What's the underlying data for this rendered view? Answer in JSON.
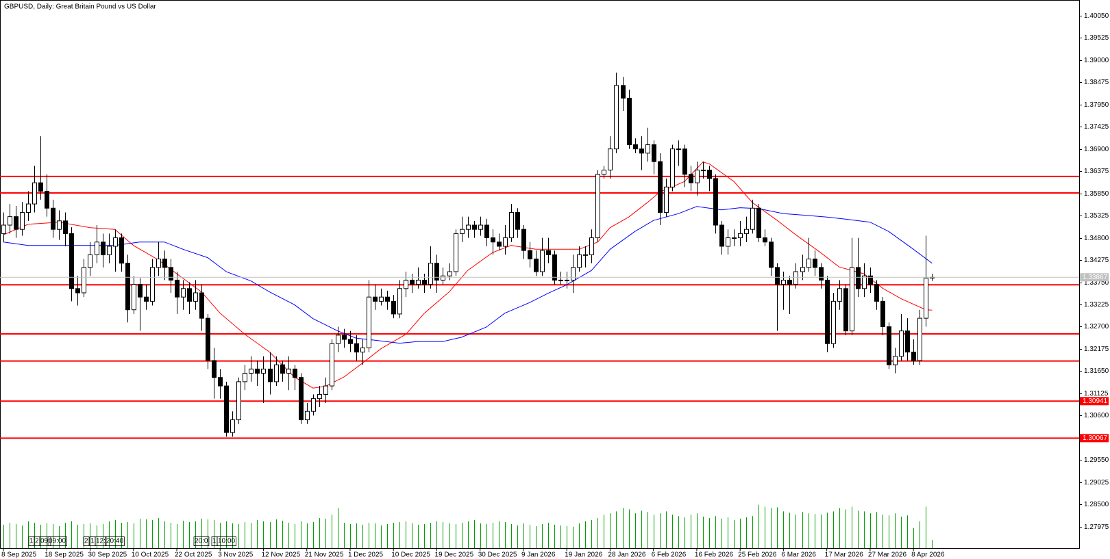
{
  "chart_data": {
    "type": "candlestick",
    "title": "GBPUSD, Daily:  Great Britain Pound vs US Dollar",
    "ylim": [
      1.2747,
      1.4037
    ],
    "yticks": [
      {
        "value": 1.4005,
        "label": "1.40050"
      },
      {
        "value": 1.39525,
        "label": "1.39525"
      },
      {
        "value": 1.39,
        "label": "1.39000"
      },
      {
        "value": 1.38475,
        "label": "1.38475"
      },
      {
        "value": 1.3795,
        "label": "1.37950"
      },
      {
        "value": 1.37425,
        "label": "1.37425"
      },
      {
        "value": 1.369,
        "label": "1.36900"
      },
      {
        "value": 1.36375,
        "label": "1.36375"
      },
      {
        "value": 1.3585,
        "label": "1.35850"
      },
      {
        "value": 1.35325,
        "label": "1.35325"
      },
      {
        "value": 1.348,
        "label": "1.34800"
      },
      {
        "value": 1.34275,
        "label": "1.34275"
      },
      {
        "value": 1.3375,
        "label": "1.33750"
      },
      {
        "value": 1.33225,
        "label": "1.33225"
      },
      {
        "value": 1.327,
        "label": "1.32700"
      },
      {
        "value": 1.32175,
        "label": "1.32175"
      },
      {
        "value": 1.3165,
        "label": "1.31650"
      },
      {
        "value": 1.31125,
        "label": "1.31125"
      },
      {
        "value": 1.306,
        "label": "1.30600"
      },
      {
        "value": 1.30075,
        "label": "1.30075"
      },
      {
        "value": 1.2955,
        "label": "1.29550"
      },
      {
        "value": 1.29025,
        "label": "1.29025"
      },
      {
        "value": 1.285,
        "label": "1.28500"
      },
      {
        "value": 1.27975,
        "label": "1.27975"
      }
    ],
    "categories": [
      "8 Sep 2025",
      "18 Sep 2025",
      "30 Sep 2025",
      "10 Oct 2025",
      "22 Oct 2025",
      "3 Nov 2025",
      "12 Nov 2025",
      "21 Nov 2025",
      "1 Dec 2025",
      "10 Dec 2025",
      "19 Dec 2025",
      "30 Dec 2025",
      "9 Jan 2026",
      "19 Jan 2026",
      "28 Jan 2026",
      "6 Feb 2026",
      "16 Feb 2026",
      "25 Feb 2026",
      "6 Mar 2026",
      "17 Mar 2026",
      "27 Mar 2026",
      "8 Apr 2026"
    ],
    "candles": [
      [
        1.349,
        1.354,
        1.347,
        1.351
      ],
      [
        1.351,
        1.356,
        1.349,
        1.353
      ],
      [
        1.353,
        1.3555,
        1.348,
        1.35
      ],
      [
        1.35,
        1.3565,
        1.3485,
        1.354
      ],
      [
        1.354,
        1.359,
        1.352,
        1.356
      ],
      [
        1.356,
        1.365,
        1.354,
        1.361
      ],
      [
        1.361,
        1.372,
        1.357,
        1.359
      ],
      [
        1.359,
        1.363,
        1.353,
        1.355
      ],
      [
        1.355,
        1.357,
        1.348,
        1.35
      ],
      [
        1.35,
        1.3545,
        1.3475,
        1.352
      ],
      [
        1.352,
        1.354,
        1.346,
        1.349
      ],
      [
        1.349,
        1.3505,
        1.333,
        1.336
      ],
      [
        1.336,
        1.339,
        1.332,
        1.335
      ],
      [
        1.335,
        1.343,
        1.334,
        1.341
      ],
      [
        1.341,
        1.347,
        1.339,
        1.344
      ],
      [
        1.344,
        1.351,
        1.342,
        1.347
      ],
      [
        1.347,
        1.349,
        1.341,
        1.344
      ],
      [
        1.344,
        1.349,
        1.342,
        1.346
      ],
      [
        1.346,
        1.35,
        1.34,
        1.348
      ],
      [
        1.348,
        1.349,
        1.34,
        1.342
      ],
      [
        1.342,
        1.344,
        1.328,
        1.331
      ],
      [
        1.331,
        1.339,
        1.33,
        1.337
      ],
      [
        1.337,
        1.3385,
        1.326,
        1.334
      ],
      [
        1.334,
        1.337,
        1.331,
        1.333
      ],
      [
        1.333,
        1.343,
        1.332,
        1.341
      ],
      [
        1.341,
        1.347,
        1.339,
        1.343
      ],
      [
        1.343,
        1.345,
        1.338,
        1.341
      ],
      [
        1.341,
        1.343,
        1.335,
        1.338
      ],
      [
        1.338,
        1.34,
        1.33,
        1.334
      ],
      [
        1.334,
        1.338,
        1.331,
        1.336
      ],
      [
        1.336,
        1.3375,
        1.33,
        1.333
      ],
      [
        1.333,
        1.338,
        1.331,
        1.335
      ],
      [
        1.335,
        1.337,
        1.326,
        1.329
      ],
      [
        1.329,
        1.33,
        1.317,
        1.319
      ],
      [
        1.319,
        1.322,
        1.31,
        1.315
      ],
      [
        1.315,
        1.317,
        1.31,
        1.313
      ],
      [
        1.313,
        1.314,
        1.301,
        1.302
      ],
      [
        1.302,
        1.307,
        1.301,
        1.305
      ],
      [
        1.305,
        1.315,
        1.304,
        1.314
      ],
      [
        1.314,
        1.318,
        1.312,
        1.316
      ],
      [
        1.316,
        1.32,
        1.314,
        1.317
      ],
      [
        1.317,
        1.319,
        1.313,
        1.316
      ],
      [
        1.316,
        1.32,
        1.309,
        1.317
      ],
      [
        1.317,
        1.321,
        1.311,
        1.314
      ],
      [
        1.314,
        1.32,
        1.313,
        1.318
      ],
      [
        1.318,
        1.319,
        1.314,
        1.316
      ],
      [
        1.316,
        1.32,
        1.312,
        1.317
      ],
      [
        1.317,
        1.318,
        1.312,
        1.315
      ],
      [
        1.315,
        1.316,
        1.304,
        1.305
      ],
      [
        1.305,
        1.309,
        1.304,
        1.307
      ],
      [
        1.307,
        1.311,
        1.306,
        1.31
      ],
      [
        1.31,
        1.313,
        1.308,
        1.311
      ],
      [
        1.311,
        1.315,
        1.309,
        1.313
      ],
      [
        1.313,
        1.324,
        1.312,
        1.323
      ],
      [
        1.323,
        1.327,
        1.321,
        1.325
      ],
      [
        1.325,
        1.3265,
        1.322,
        1.324
      ],
      [
        1.324,
        1.326,
        1.321,
        1.323
      ],
      [
        1.323,
        1.325,
        1.319,
        1.321
      ],
      [
        1.321,
        1.324,
        1.318,
        1.322
      ],
      [
        1.322,
        1.338,
        1.321,
        1.334
      ],
      [
        1.334,
        1.337,
        1.331,
        1.333
      ],
      [
        1.333,
        1.336,
        1.332,
        1.334
      ],
      [
        1.334,
        1.3355,
        1.331,
        1.333
      ],
      [
        1.333,
        1.3345,
        1.329,
        1.33
      ],
      [
        1.33,
        1.338,
        1.329,
        1.336
      ],
      [
        1.336,
        1.34,
        1.334,
        1.338
      ],
      [
        1.338,
        1.3395,
        1.335,
        1.337
      ],
      [
        1.337,
        1.341,
        1.336,
        1.338
      ],
      [
        1.338,
        1.3395,
        1.335,
        1.337
      ],
      [
        1.337,
        1.346,
        1.336,
        1.342
      ],
      [
        1.342,
        1.344,
        1.335,
        1.338
      ],
      [
        1.338,
        1.341,
        1.337,
        1.339
      ],
      [
        1.339,
        1.342,
        1.338,
        1.34
      ],
      [
        1.34,
        1.35,
        1.339,
        1.349
      ],
      [
        1.349,
        1.353,
        1.347,
        1.35
      ],
      [
        1.35,
        1.353,
        1.348,
        1.351
      ],
      [
        1.351,
        1.352,
        1.348,
        1.35
      ],
      [
        1.35,
        1.353,
        1.3485,
        1.351
      ],
      [
        1.351,
        1.3525,
        1.346,
        1.348
      ],
      [
        1.348,
        1.35,
        1.344,
        1.347
      ],
      [
        1.347,
        1.349,
        1.345,
        1.346
      ],
      [
        1.346,
        1.351,
        1.344,
        1.348
      ],
      [
        1.348,
        1.356,
        1.347,
        1.354
      ],
      [
        1.354,
        1.355,
        1.348,
        1.35
      ],
      [
        1.35,
        1.351,
        1.343,
        1.345
      ],
      [
        1.345,
        1.347,
        1.341,
        1.343
      ],
      [
        1.343,
        1.345,
        1.339,
        1.34
      ],
      [
        1.34,
        1.348,
        1.339,
        1.345
      ],
      [
        1.345,
        1.348,
        1.342,
        1.344
      ],
      [
        1.344,
        1.345,
        1.337,
        1.338
      ],
      [
        1.338,
        1.34,
        1.337,
        1.338
      ],
      [
        1.338,
        1.34,
        1.336,
        1.338
      ],
      [
        1.338,
        1.344,
        1.335,
        1.341
      ],
      [
        1.341,
        1.346,
        1.34,
        1.344
      ],
      [
        1.344,
        1.346,
        1.341,
        1.344
      ],
      [
        1.344,
        1.35,
        1.342,
        1.348
      ],
      [
        1.348,
        1.364,
        1.347,
        1.363
      ],
      [
        1.363,
        1.365,
        1.362,
        1.364
      ],
      [
        1.364,
        1.372,
        1.362,
        1.369
      ],
      [
        1.369,
        1.387,
        1.368,
        1.384
      ],
      [
        1.384,
        1.386,
        1.378,
        1.381
      ],
      [
        1.381,
        1.383,
        1.369,
        1.37
      ],
      [
        1.37,
        1.3715,
        1.368,
        1.369
      ],
      [
        1.369,
        1.372,
        1.364,
        1.368
      ],
      [
        1.368,
        1.374,
        1.366,
        1.37
      ],
      [
        1.37,
        1.371,
        1.363,
        1.366
      ],
      [
        1.366,
        1.368,
        1.351,
        1.354
      ],
      [
        1.354,
        1.362,
        1.353,
        1.36
      ],
      [
        1.36,
        1.37,
        1.359,
        1.369
      ],
      [
        1.369,
        1.371,
        1.365,
        1.369
      ],
      [
        1.369,
        1.37,
        1.36,
        1.363
      ],
      [
        1.363,
        1.365,
        1.359,
        1.361
      ],
      [
        1.361,
        1.366,
        1.358,
        1.364
      ],
      [
        1.364,
        1.366,
        1.362,
        1.364
      ],
      [
        1.364,
        1.365,
        1.359,
        1.362
      ],
      [
        1.362,
        1.363,
        1.349,
        1.351
      ],
      [
        1.351,
        1.352,
        1.344,
        1.346
      ],
      [
        1.346,
        1.35,
        1.344,
        1.348
      ],
      [
        1.348,
        1.35,
        1.346,
        1.348
      ],
      [
        1.348,
        1.352,
        1.346,
        1.349
      ],
      [
        1.349,
        1.353,
        1.347,
        1.35
      ],
      [
        1.35,
        1.357,
        1.349,
        1.355
      ],
      [
        1.355,
        1.356,
        1.347,
        1.348
      ],
      [
        1.348,
        1.35,
        1.346,
        1.347
      ],
      [
        1.347,
        1.348,
        1.339,
        1.341
      ],
      [
        1.341,
        1.342,
        1.326,
        1.337
      ],
      [
        1.337,
        1.34,
        1.331,
        1.338
      ],
      [
        1.338,
        1.339,
        1.33,
        1.337
      ],
      [
        1.337,
        1.342,
        1.336,
        1.34
      ],
      [
        1.34,
        1.344,
        1.338,
        1.341
      ],
      [
        1.341,
        1.348,
        1.34,
        1.343
      ],
      [
        1.343,
        1.345,
        1.339,
        1.341
      ],
      [
        1.341,
        1.342,
        1.336,
        1.338
      ],
      [
        1.338,
        1.339,
        1.321,
        1.323
      ],
      [
        1.323,
        1.335,
        1.322,
        1.333
      ],
      [
        1.333,
        1.338,
        1.331,
        1.336
      ],
      [
        1.336,
        1.337,
        1.325,
        1.326
      ],
      [
        1.326,
        1.348,
        1.325,
        1.341
      ],
      [
        1.341,
        1.348,
        1.334,
        1.336
      ],
      [
        1.336,
        1.342,
        1.334,
        1.339
      ],
      [
        1.339,
        1.341,
        1.335,
        1.337
      ],
      [
        1.337,
        1.338,
        1.331,
        1.333
      ],
      [
        1.333,
        1.334,
        1.325,
        1.327
      ],
      [
        1.327,
        1.328,
        1.317,
        1.318
      ],
      [
        1.318,
        1.322,
        1.316,
        1.32
      ],
      [
        1.32,
        1.33,
        1.319,
        1.326
      ],
      [
        1.326,
        1.329,
        1.319,
        1.321
      ],
      [
        1.321,
        1.324,
        1.318,
        1.319
      ],
      [
        1.319,
        1.331,
        1.318,
        1.329
      ],
      [
        1.329,
        1.3485,
        1.327,
        1.3385
      ],
      [
        1.3385,
        1.3395,
        1.3378,
        1.33867
      ]
    ],
    "up_color": "#ffffff",
    "down_color": "#000000",
    "volumes": [
      35,
      38,
      36,
      34,
      40,
      38,
      35,
      37,
      36,
      33,
      38,
      40,
      35,
      36,
      37,
      34,
      36,
      40,
      42,
      38,
      39,
      37,
      44,
      43,
      42,
      45,
      40,
      38,
      36,
      41,
      39,
      40,
      44,
      43,
      42,
      38,
      40,
      37,
      36,
      39,
      38,
      42,
      40,
      39,
      43,
      41,
      38,
      36,
      40,
      37,
      39,
      45,
      44,
      50,
      60,
      38,
      36,
      37,
      35,
      38,
      37,
      34,
      36,
      38,
      39,
      40,
      37,
      35,
      36,
      38,
      40,
      39,
      37,
      36,
      38,
      40,
      42,
      37,
      36,
      38,
      40,
      39,
      36,
      34,
      37,
      35,
      33,
      36,
      38,
      35,
      34,
      33,
      32,
      37,
      40,
      42,
      45,
      50,
      52,
      55,
      60,
      58,
      52,
      56,
      54,
      50,
      52,
      55,
      50,
      48,
      46,
      50,
      52,
      47,
      45,
      48,
      44,
      46,
      42,
      44,
      46,
      48,
      65,
      62,
      60,
      61,
      55,
      53,
      50,
      54,
      52,
      51,
      50,
      53,
      55,
      60,
      58,
      62,
      56,
      55,
      52,
      54,
      50,
      49,
      52,
      47,
      49,
      30,
      40,
      62,
      12
    ],
    "volume_color": "#00a000",
    "volume_lim": [
      0,
      80
    ],
    "indicators": [
      {
        "color": "#ff0000",
        "x": [
          0,
          4,
          9,
          14,
          18,
          21,
          25,
          28,
          32,
          35,
          39,
          43,
          47,
          50,
          52,
          55,
          58,
          61,
          65,
          68,
          72,
          75,
          79,
          82,
          86,
          89,
          93,
          96,
          98,
          101,
          104,
          106,
          110,
          113,
          114,
          118,
          121,
          125,
          128,
          132,
          135,
          139,
          142,
          145,
          149,
          150
        ],
        "values": [
          1.3487,
          1.3512,
          1.3517,
          1.3504,
          1.35,
          1.3462,
          1.3428,
          1.3395,
          1.3352,
          1.3302,
          1.3252,
          1.321,
          1.3151,
          1.3125,
          1.3129,
          1.3151,
          1.3184,
          1.3218,
          1.3252,
          1.3302,
          1.3352,
          1.3403,
          1.3445,
          1.3462,
          1.3453,
          1.3453,
          1.3453,
          1.347,
          1.3504,
          1.3529,
          1.3563,
          1.3588,
          1.3613,
          1.3659,
          1.3655,
          1.3613,
          1.3563,
          1.3521,
          1.3487,
          1.3445,
          1.3411,
          1.3395,
          1.3361,
          1.3336,
          1.331,
          1.3309
        ]
      },
      {
        "color": "#0000ff",
        "x": [
          0,
          4,
          9,
          14,
          18,
          22,
          26,
          29,
          33,
          36,
          40,
          43,
          47,
          50,
          54,
          57,
          60,
          64,
          67,
          71,
          74,
          78,
          81,
          85,
          88,
          91,
          95,
          98,
          102,
          105,
          109,
          112,
          116,
          119,
          122,
          126,
          129,
          133,
          136,
          140,
          143,
          147,
          150
        ],
        "values": [
          1.347,
          1.3462,
          1.3462,
          1.3462,
          1.3462,
          1.347,
          1.347,
          1.3453,
          1.3433,
          1.34,
          1.3378,
          1.3352,
          1.3322,
          1.3289,
          1.326,
          1.3243,
          1.3238,
          1.3231,
          1.3235,
          1.3235,
          1.3245,
          1.3269,
          1.3302,
          1.3327,
          1.3349,
          1.3369,
          1.3403,
          1.3453,
          1.3495,
          1.3521,
          1.3537,
          1.3554,
          1.3546,
          1.3551,
          1.3549,
          1.3537,
          1.3534,
          1.3529,
          1.3524,
          1.3517,
          1.3495,
          1.3453,
          1.342
        ]
      }
    ],
    "levels": [
      1.3625,
      1.3586,
      1.3369,
      1.3253,
      1.3189
    ],
    "labeled_levels": [
      1.30941,
      1.30067
    ],
    "level_color": "#ff0000",
    "event_labels": [
      "1",
      "2",
      "09:",
      "09:00",
      "2",
      "1",
      "12:",
      "20:40",
      "20:0",
      "1",
      "10:00"
    ]
  }
}
